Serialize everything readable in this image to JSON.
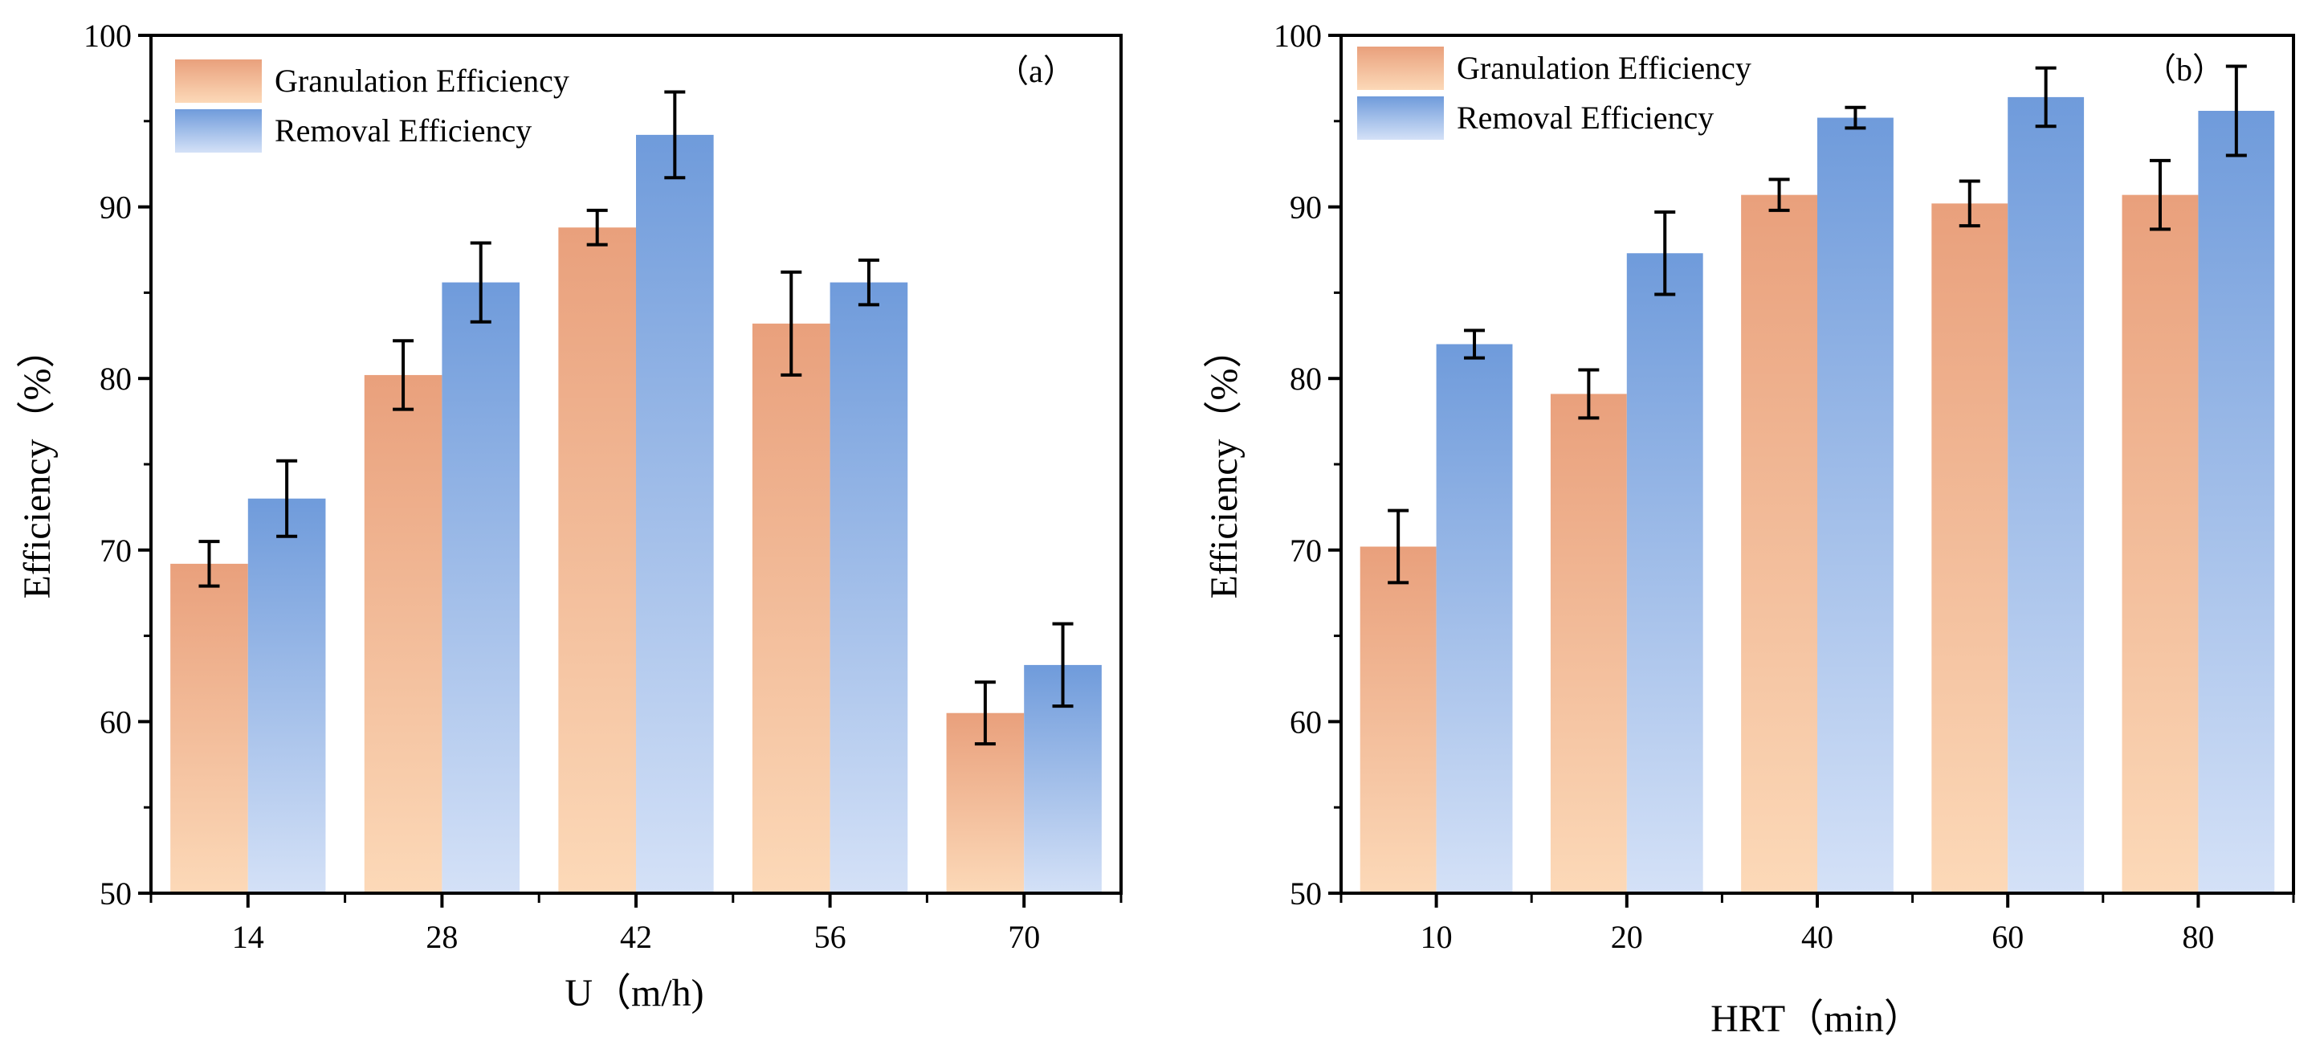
{
  "chart_data": [
    {
      "type": "bar",
      "panel_label": "（a）",
      "xlabel": "U（m/h)",
      "ylabel": "Efficiency（%）",
      "ylim": [
        50,
        100
      ],
      "yticks": [
        "50",
        "60",
        "70",
        "80",
        "90",
        "100"
      ],
      "categories": [
        "14",
        "28",
        "42",
        "56",
        "70"
      ],
      "legend_position": "top-left",
      "series": [
        {
          "name": "Granulation Efficiency",
          "values": [
            69.2,
            80.2,
            88.8,
            83.2,
            60.5
          ],
          "errors": [
            1.3,
            2.0,
            1.0,
            3.0,
            1.8
          ]
        },
        {
          "name": "Removal Efficiency",
          "values": [
            73.0,
            85.6,
            94.2,
            85.6,
            63.3
          ],
          "errors": [
            2.2,
            2.3,
            2.5,
            1.3,
            2.4
          ]
        }
      ]
    },
    {
      "type": "bar",
      "panel_label": "（b）",
      "xlabel": "HRT（min）",
      "ylabel": "Efficiency（%）",
      "ylim": [
        50,
        100
      ],
      "yticks": [
        "50",
        "60",
        "70",
        "80",
        "90",
        "100"
      ],
      "categories": [
        "10",
        "20",
        "40",
        "60",
        "80"
      ],
      "legend_position": "top-left",
      "series": [
        {
          "name": "Granulation Efficiency",
          "values": [
            70.2,
            79.1,
            90.7,
            90.2,
            90.7
          ],
          "errors": [
            2.1,
            1.4,
            0.9,
            1.3,
            2.0
          ]
        },
        {
          "name": "Removal Efficiency",
          "values": [
            82.0,
            87.3,
            95.2,
            96.4,
            95.6
          ],
          "errors": [
            0.8,
            2.4,
            0.6,
            1.7,
            2.6
          ]
        }
      ]
    }
  ],
  "colors": {
    "granulation_top": "#e9a07c",
    "granulation_bottom": "#fcd9b8",
    "removal_top": "#6f9bdb",
    "removal_bottom": "#d4e1f7",
    "axis": "#000000"
  }
}
